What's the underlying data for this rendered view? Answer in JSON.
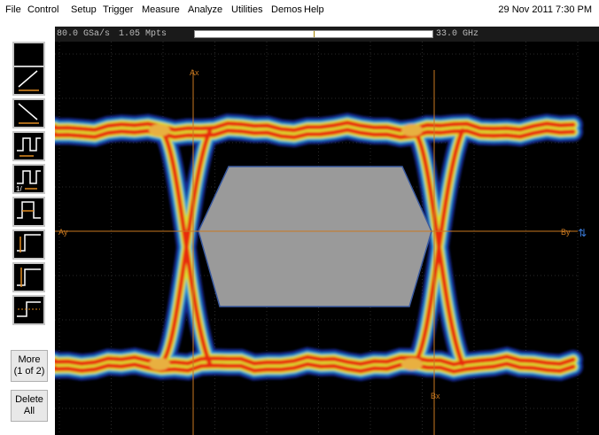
{
  "menu": [
    "File",
    "Control",
    "Setup",
    "Trigger",
    "Measure",
    "Analyze",
    "Utilities",
    "Demos",
    "Help"
  ],
  "datetime": "29 Nov 2011  7:30 PM",
  "status": {
    "sample_rate": "80.0 GSa/s",
    "memory_depth": "1.05 Mpts",
    "bandwidth": "33.0 GHz"
  },
  "tools": [
    {
      "icon": "slope-up-time-icon",
      "label": ""
    },
    {
      "icon": "slope-down-time-icon",
      "label": ""
    },
    {
      "icon": "period-icon",
      "label": ""
    },
    {
      "icon": "frequency-icon",
      "label": "1/"
    },
    {
      "icon": "positive-width-icon",
      "label": ""
    },
    {
      "icon": "amplitude-icon",
      "label": ""
    },
    {
      "icon": "top-level-icon",
      "label": ""
    },
    {
      "icon": "rise-level-icon",
      "label": ""
    }
  ],
  "more_button": {
    "line1": "More",
    "line2": "(1 of 2)"
  },
  "delete_button": {
    "line1": "Delete",
    "line2": "All"
  },
  "markers": {
    "ax_top": "Ax",
    "ax_left": "Ay",
    "bx": "Bx",
    "by": "By"
  },
  "colors": {
    "background": "#000000",
    "grid": "#3a3a3a",
    "marker": "#c87820",
    "mask": "#9a9a9a"
  }
}
